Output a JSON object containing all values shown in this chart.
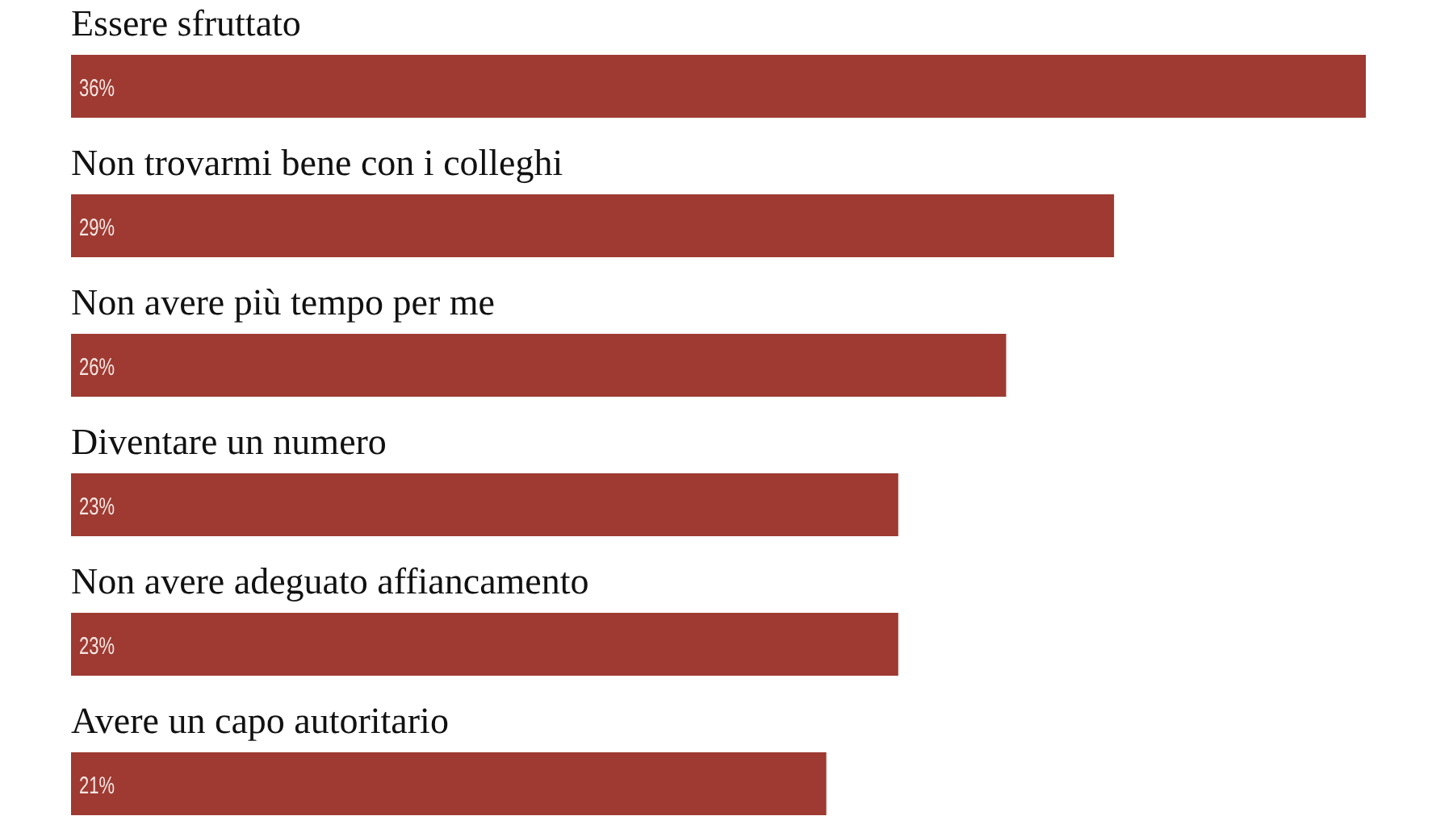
{
  "chart_data": {
    "type": "bar",
    "orientation": "horizontal",
    "categories": [
      "Essere sfruttato",
      "Non trovarmi bene con i colleghi",
      "Non avere più tempo per me",
      "Diventare un numero",
      "Non avere adeguato affiancamento",
      "Avere un capo autoritario"
    ],
    "values": [
      36,
      29,
      26,
      23,
      23,
      21
    ],
    "value_labels": [
      "36%",
      "29%",
      "26%",
      "23%",
      "23%",
      "21%"
    ],
    "color": "#9e3a32"
  }
}
